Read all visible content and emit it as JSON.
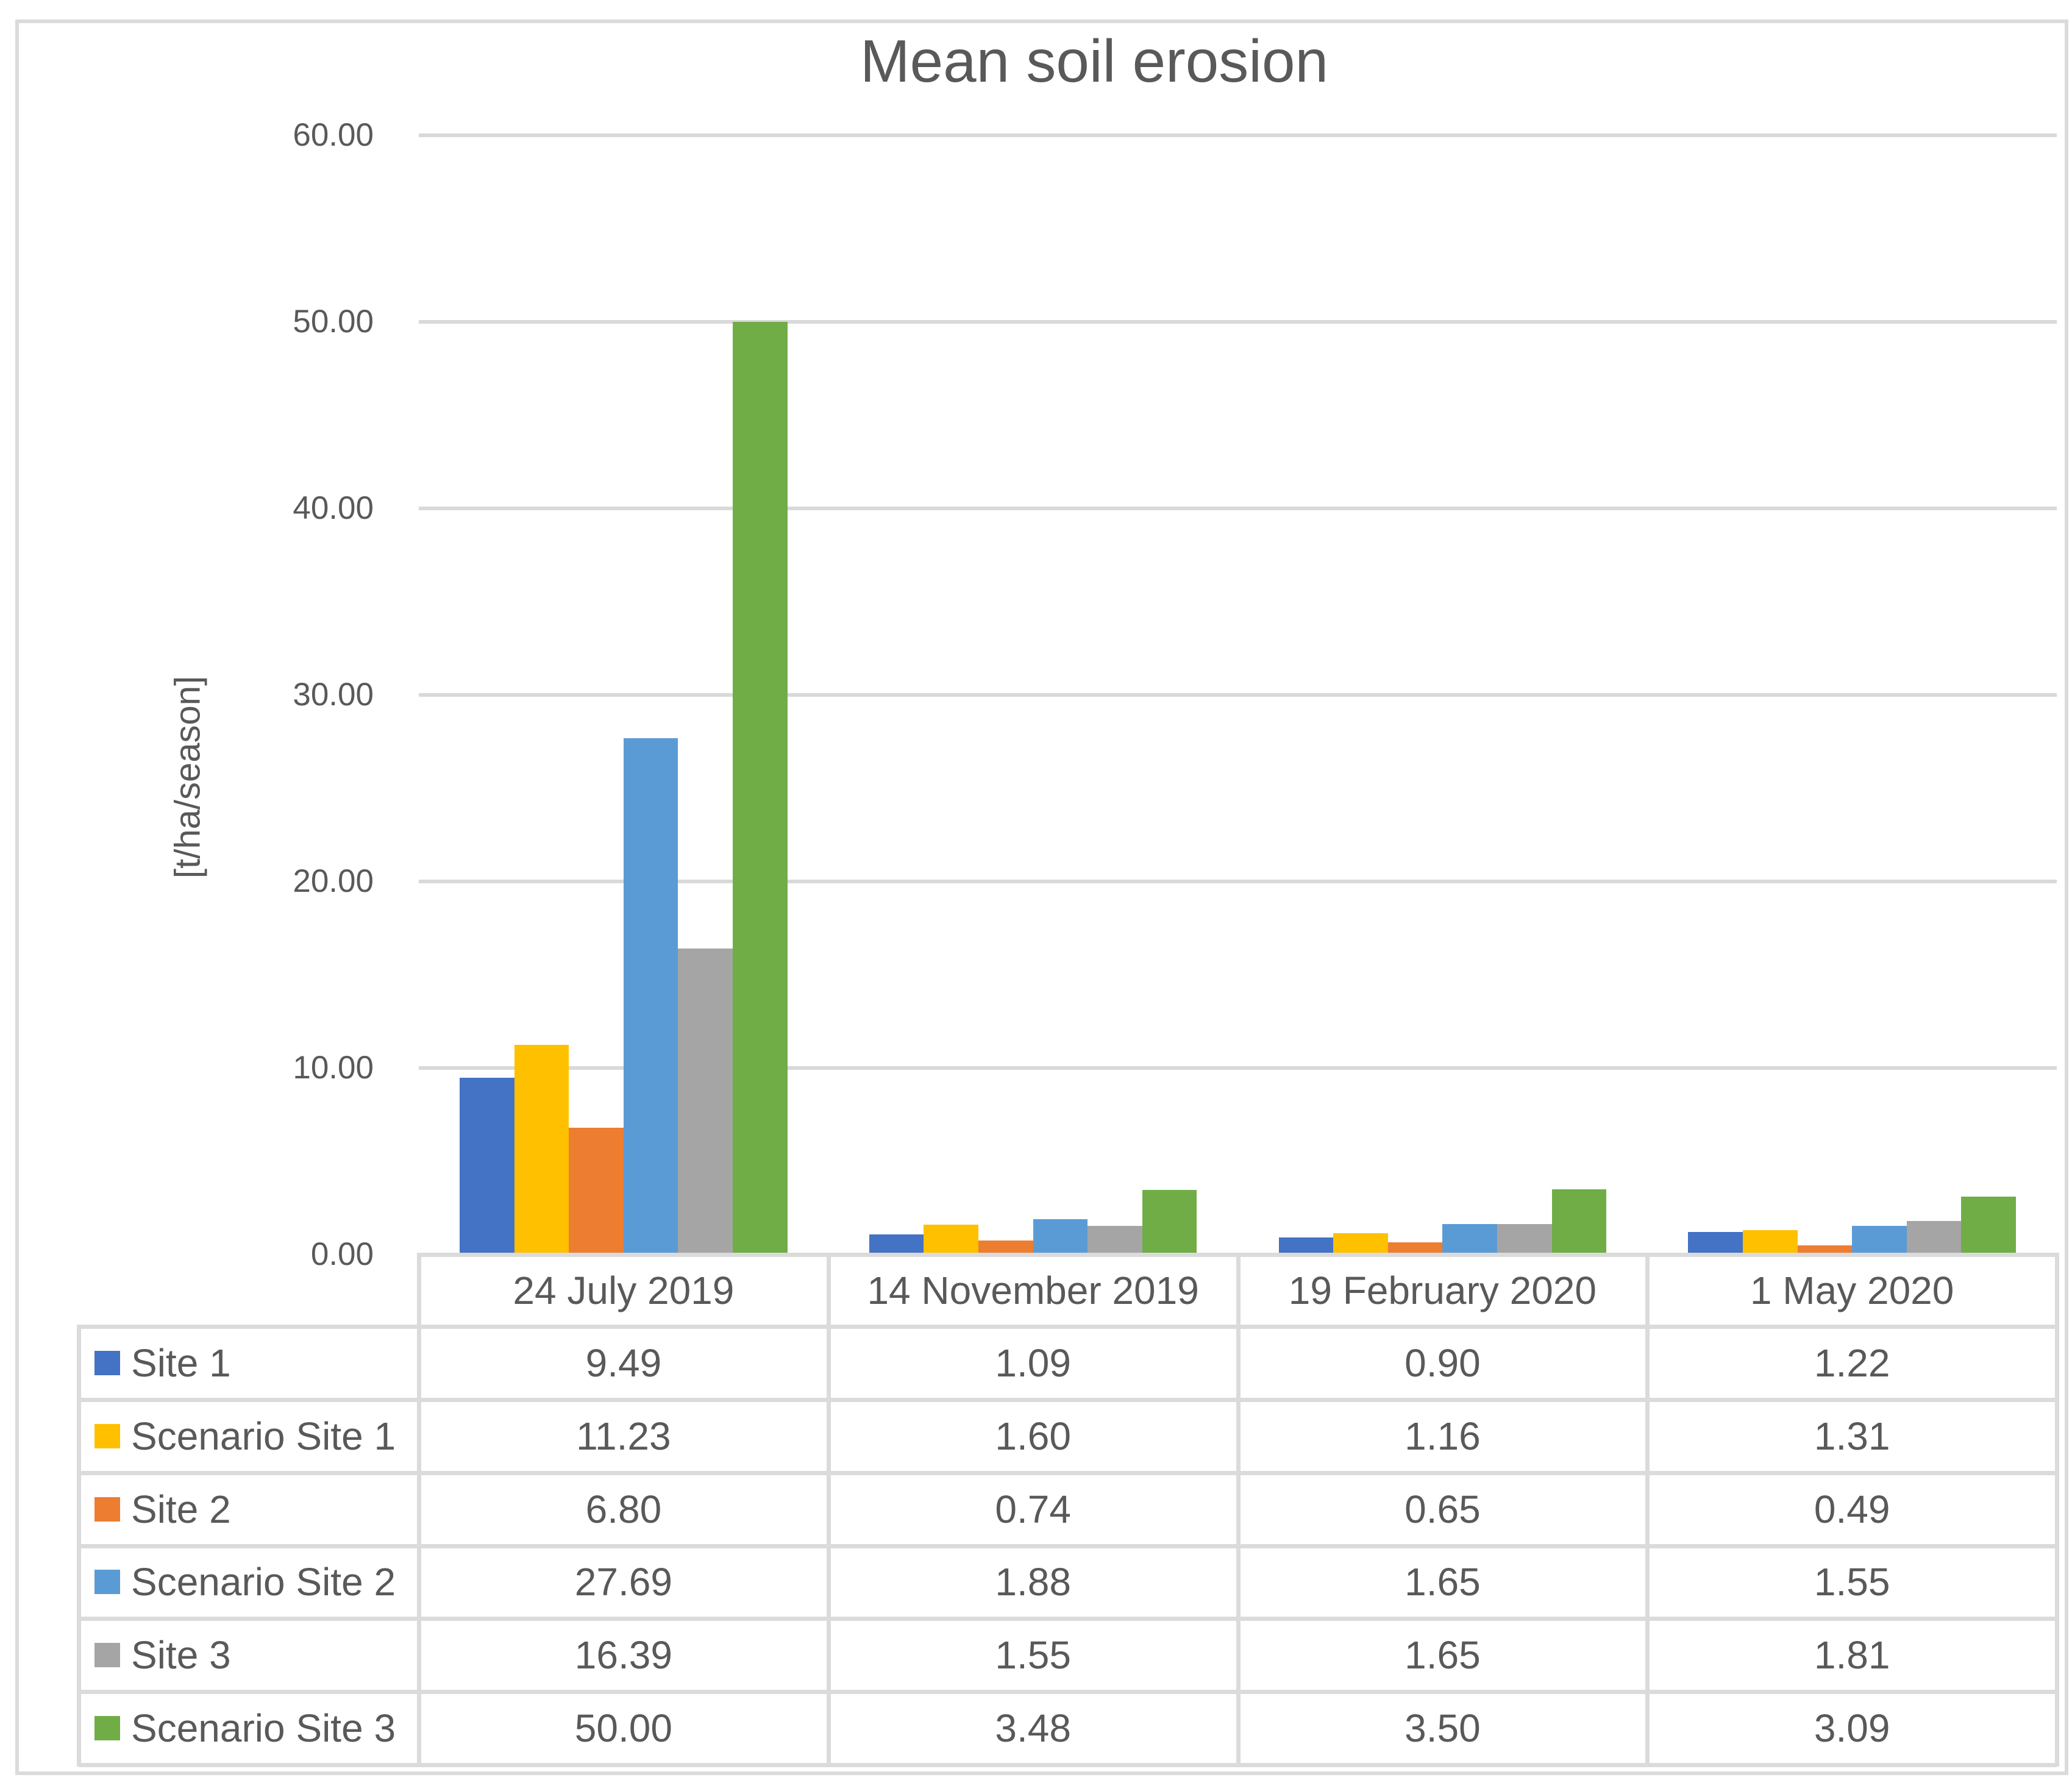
{
  "chart_data": {
    "type": "bar",
    "title": "Mean soil erosion",
    "ylabel": "[t/ha/season]",
    "xlabel": "",
    "ylim": [
      0,
      60
    ],
    "grid": true,
    "legend_position": "data-table-left",
    "y_ticks": [
      "60.00",
      "50.00",
      "40.00",
      "30.00",
      "20.00",
      "10.00",
      "0.00"
    ],
    "categories": [
      "24 July 2019",
      "14 November 2019",
      "19 February 2020",
      "1 May 2020"
    ],
    "series": [
      {
        "name": "Site 1",
        "color": "#4472C4",
        "values": [
          9.49,
          1.09,
          0.9,
          1.22
        ]
      },
      {
        "name": "Scenario Site 1",
        "color": "#FFC000",
        "values": [
          11.23,
          1.6,
          1.16,
          1.31
        ]
      },
      {
        "name": "Site 2",
        "color": "#ED7D31",
        "values": [
          6.8,
          0.74,
          0.65,
          0.49
        ]
      },
      {
        "name": "Scenario Site 2",
        "color": "#5B9BD5",
        "values": [
          27.69,
          1.88,
          1.65,
          1.55
        ]
      },
      {
        "name": "Site 3",
        "color": "#A5A5A5",
        "values": [
          16.39,
          1.55,
          1.65,
          1.81
        ]
      },
      {
        "name": "Scenario Site 3",
        "color": "#70AD47",
        "values": [
          50.0,
          3.48,
          3.5,
          3.09
        ]
      }
    ],
    "colors": {
      "text": "#595959",
      "gridline": "#D9D9D9",
      "table_border": "#DBDBDB"
    }
  }
}
